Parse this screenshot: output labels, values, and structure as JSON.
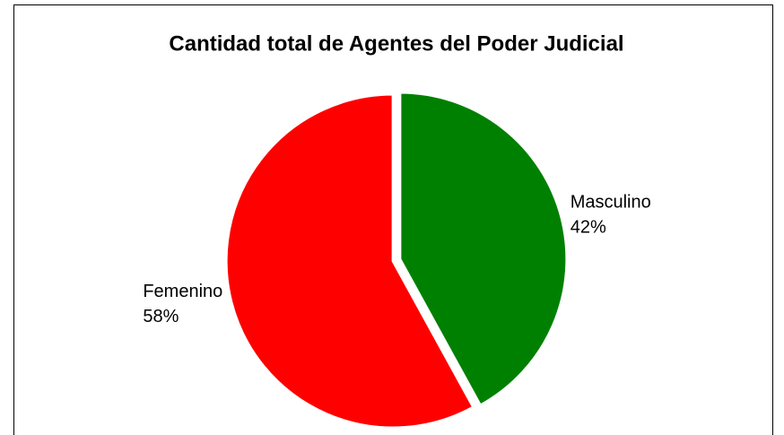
{
  "chart_data": {
    "type": "pie",
    "title": "Cantidad total de Agentes del Poder Judicial",
    "categories": [
      "Masculino",
      "Femenino"
    ],
    "values": [
      42,
      58
    ],
    "value_labels": [
      "42%",
      "58%"
    ],
    "colors": [
      "#008000",
      "#ff0000"
    ]
  }
}
